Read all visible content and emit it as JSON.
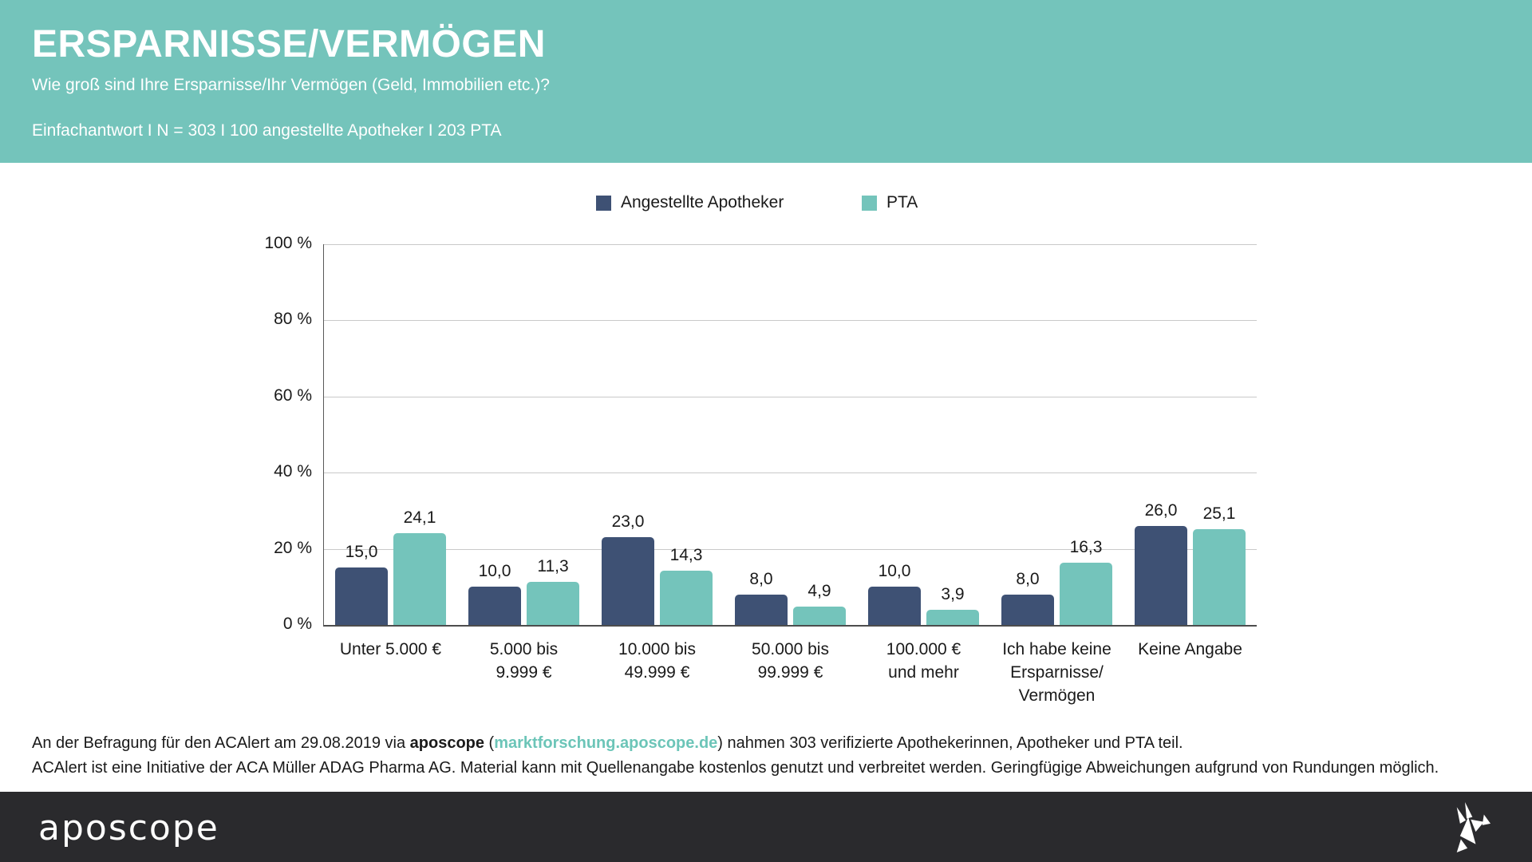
{
  "header": {
    "title": "ERSPARNISSE/VERMÖGEN",
    "question": "Wie groß sind Ihre Ersparnisse/Ihr Vermögen (Geld, Immobilien etc.)?",
    "meta": "Einfachantwort I N = 303 I 100 angestellte Apotheker I 203 PTA"
  },
  "colors": {
    "header_bg": "#74c4bb",
    "series_apotheker": "#3e5174",
    "series_pta": "#74c4bb",
    "footer_bar_bg": "#2a2a2d",
    "link": "#6cc5b8",
    "grid": "#c9c9c9",
    "axis": "#4d4d4d"
  },
  "chart_data": {
    "type": "bar",
    "title": "Ersparnisse/Vermögen",
    "categories": [
      "Unter 5.000 €",
      "5.000 bis\n9.999 €",
      "10.000 bis\n49.999 €",
      "50.000 bis\n99.999 €",
      "100.000 €\nund mehr",
      "Ich habe keine\nErsparnisse/\nVermögen",
      "Keine Angabe"
    ],
    "series": [
      {
        "name": "Angestellte Apotheker",
        "color": "#3e5174",
        "values": [
          15.0,
          10.0,
          23.0,
          8.0,
          10.0,
          8.0,
          26.0
        ]
      },
      {
        "name": "PTA",
        "color": "#74c4bb",
        "values": [
          24.1,
          11.3,
          14.3,
          4.9,
          3.9,
          16.3,
          25.1
        ]
      }
    ],
    "xlabel": "",
    "ylabel": "",
    "ylim": [
      0,
      100
    ],
    "yticks": [
      "0 %",
      "20 %",
      "40 %",
      "60 %",
      "80 %",
      "100 %"
    ],
    "grid": true,
    "legend_position": "top",
    "value_label_format": "comma-decimal-one-digit"
  },
  "source": {
    "line1_prefix": "An der Befragung für den ACAlert am 29.08.2019 via ",
    "line1_brand": "aposcope",
    "line1_open": " (",
    "line1_link": "marktforschung.aposcope.de",
    "line1_close": ") ",
    "line1_suffix": "nahmen 303 verifizierte Apothekerinnen, Apotheker und PTA teil.",
    "line2": "ACAlert ist eine Initiative der ACA Müller ADAG Pharma AG. Material kann mit Quellenangabe kostenlos genutzt und verbreitet werden. Geringfügige Abweichungen aufgrund von Rundungen möglich."
  },
  "footer": {
    "brand": "aposcope",
    "bird_icon": "origami-bird"
  }
}
